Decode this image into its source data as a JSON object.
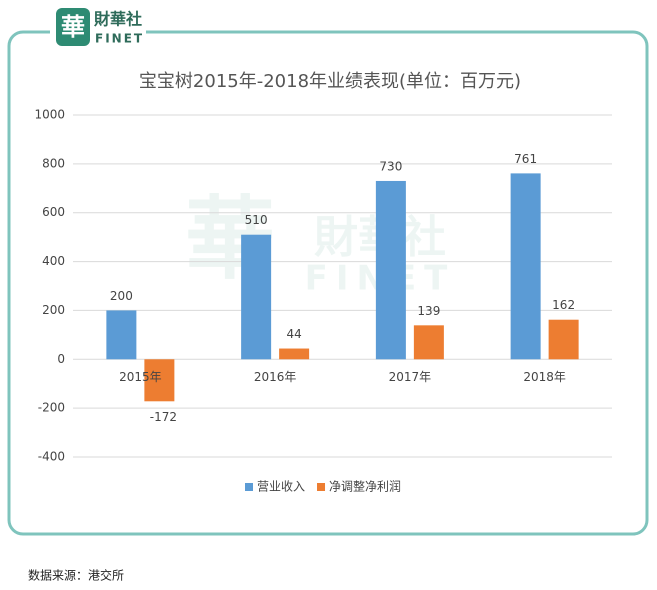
{
  "logo": {
    "mark": "華",
    "name": "財華社",
    "latin": "FINET"
  },
  "chart_data": {
    "type": "bar",
    "title": "宝宝树2015年-2018年业绩表现(单位：百万元)",
    "categories": [
      "2015年",
      "2016年",
      "2017年",
      "2018年"
    ],
    "series": [
      {
        "name": "营业收入",
        "color": "#5b9bd5",
        "values": [
          200,
          510,
          730,
          761
        ]
      },
      {
        "name": "净调整净利润",
        "color": "#ed7d31",
        "values": [
          -172,
          44,
          139,
          162
        ]
      }
    ],
    "ylim": [
      -400,
      1000
    ],
    "yticks": [
      -400,
      -200,
      0,
      200,
      400,
      600,
      800,
      1000
    ],
    "grid": true,
    "legend": "bottom"
  },
  "source": "数据来源：港交所"
}
